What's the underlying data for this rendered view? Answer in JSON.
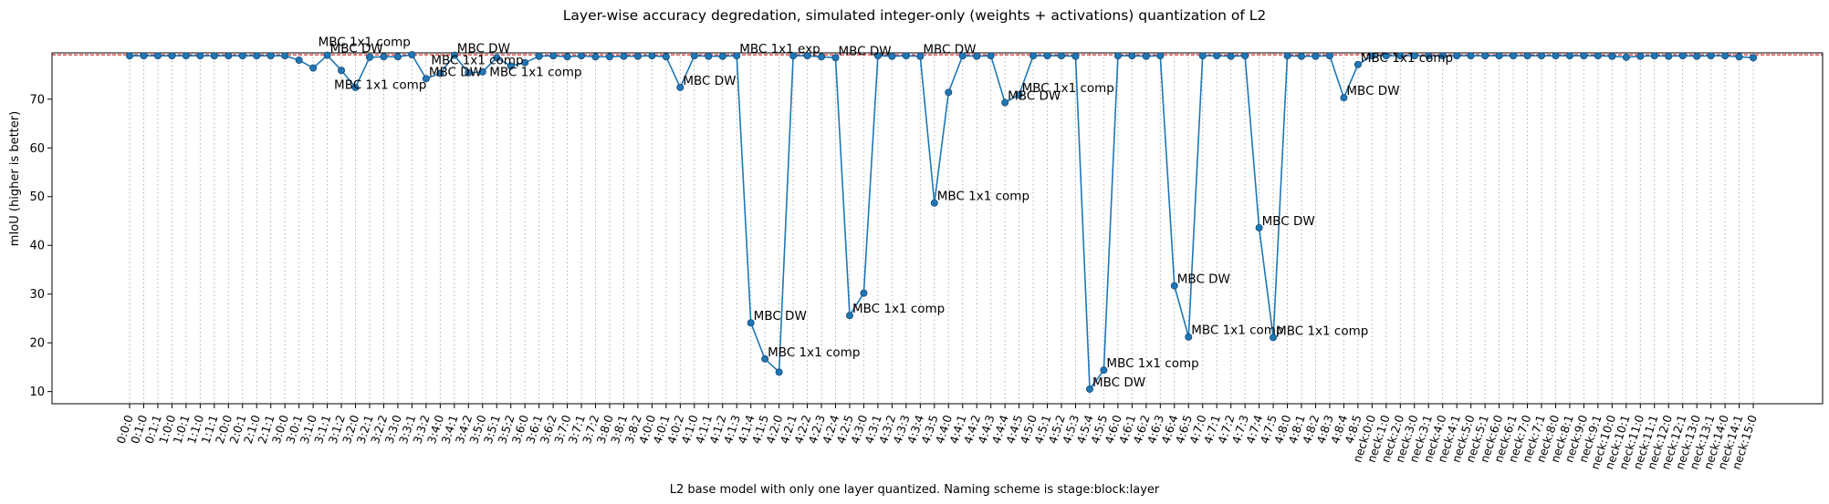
{
  "chart_data": {
    "type": "line",
    "title": "Layer-wise accuracy degredation, simulated integer-only (weights + activations) quantization of L2",
    "xlabel": "L2 base model with only one layer quantized. Naming scheme is stage:block:layer",
    "ylabel": "mIoU (higher is better)",
    "ylim": [
      7.5,
      79.5
    ],
    "yticks": [
      10,
      20,
      30,
      40,
      50,
      60,
      70
    ],
    "baseline": 79.1,
    "grid": "vertical-dotted",
    "line_color": "#1f77b4",
    "baseline_color": "#d62728",
    "categories": [
      "0:0:0",
      "0:1:0",
      "0:1:1",
      "1:0:0",
      "1:0:1",
      "1:1:0",
      "1:1:1",
      "2:0:0",
      "2:0:1",
      "2:1:0",
      "2:1:1",
      "3:0:0",
      "3:0:1",
      "3:1:0",
      "3:1:1",
      "3:1:2",
      "3:2:0",
      "3:2:1",
      "3:2:2",
      "3:3:0",
      "3:3:1",
      "3:3:2",
      "3:4:0",
      "3:4:1",
      "3:4:2",
      "3:5:0",
      "3:5:1",
      "3:5:2",
      "3:6:0",
      "3:6:1",
      "3:6:2",
      "3:7:0",
      "3:7:1",
      "3:7:2",
      "3:8:0",
      "3:8:1",
      "3:8:2",
      "4:0:0",
      "4:0:1",
      "4:0:2",
      "4:1:0",
      "4:1:1",
      "4:1:2",
      "4:1:3",
      "4:1:4",
      "4:1:5",
      "4:2:0",
      "4:2:1",
      "4:2:2",
      "4:2:3",
      "4:2:4",
      "4:2:5",
      "4:3:0",
      "4:3:1",
      "4:3:2",
      "4:3:3",
      "4:3:4",
      "4:3:5",
      "4:4:0",
      "4:4:1",
      "4:4:2",
      "4:4:3",
      "4:4:4",
      "4:4:5",
      "4:5:0",
      "4:5:1",
      "4:5:2",
      "4:5:3",
      "4:5:4",
      "4:5:5",
      "4:6:0",
      "4:6:1",
      "4:6:2",
      "4:6:3",
      "4:6:4",
      "4:6:5",
      "4:7:0",
      "4:7:1",
      "4:7:2",
      "4:7:3",
      "4:7:4",
      "4:7:5",
      "4:8:0",
      "4:8:1",
      "4:8:2",
      "4:8:3",
      "4:8:4",
      "4:8:5",
      "neck:0:0",
      "neck:1:0",
      "neck:2:0",
      "neck:3:0",
      "neck:3:1",
      "neck:4:0",
      "neck:4:1",
      "neck:5:0",
      "neck:5:1",
      "neck:6:0",
      "neck:6:1",
      "neck:7:0",
      "neck:7:1",
      "neck:8:0",
      "neck:8:1",
      "neck:9:0",
      "neck:9:1",
      "neck:10:0",
      "neck:10:1",
      "neck:11:0",
      "neck:11:1",
      "neck:12:0",
      "neck:12:1",
      "neck:13:0",
      "neck:13:1",
      "neck:14:0",
      "neck:14:1",
      "neck:15:0"
    ],
    "values": [
      78.9,
      78.9,
      78.9,
      78.9,
      78.9,
      78.9,
      78.9,
      78.9,
      78.9,
      78.9,
      78.9,
      78.9,
      78.0,
      76.4,
      79.0,
      75.9,
      72.4,
      78.6,
      78.7,
      78.7,
      79.1,
      74.2,
      75.3,
      79.0,
      75.4,
      75.6,
      78.5,
      76.8,
      77.5,
      78.8,
      78.9,
      78.7,
      78.9,
      78.7,
      78.7,
      78.8,
      78.8,
      78.9,
      78.7,
      72.4,
      78.9,
      78.8,
      78.8,
      78.9,
      24.1,
      16.7,
      14.0,
      78.9,
      78.9,
      78.7,
      78.5,
      25.6,
      30.2,
      78.9,
      78.8,
      78.9,
      78.8,
      48.7,
      71.4,
      78.9,
      78.8,
      78.9,
      69.3,
      70.9,
      78.9,
      78.9,
      78.9,
      78.8,
      10.5,
      14.4,
      78.9,
      78.9,
      78.8,
      78.9,
      31.7,
      21.2,
      78.9,
      78.9,
      78.8,
      78.9,
      43.6,
      21.1,
      78.9,
      78.8,
      78.8,
      78.9,
      70.3,
      77.1,
      78.9,
      78.9,
      78.9,
      78.9,
      78.9,
      78.9,
      78.9,
      78.9,
      78.9,
      78.9,
      78.9,
      78.9,
      78.9,
      78.9,
      78.9,
      78.9,
      78.9,
      78.8,
      78.6,
      78.8,
      78.9,
      78.8,
      78.9,
      78.8,
      78.9,
      78.9,
      78.7,
      78.5
    ],
    "annotations": [
      {
        "category": "3:1:1",
        "text": "MBC 1x1 comp",
        "anchor": "above"
      },
      {
        "category": "3:1:1",
        "text": "MBC DW",
        "anchor": "right"
      },
      {
        "category": "3:1:2",
        "text": "MBC 1x1 comp",
        "anchor": "below"
      },
      {
        "category": "3:3:2",
        "text": "MBC DW",
        "anchor": "right"
      },
      {
        "category": "3:4:0",
        "text": "MBC 1x1 comp",
        "anchor": "above"
      },
      {
        "category": "3:4:1",
        "text": "MBC DW",
        "anchor": "right"
      },
      {
        "category": "3:5:1",
        "text": "MBC 1x1 comp",
        "anchor": "below"
      },
      {
        "category": "4:0:2",
        "text": "MBC DW",
        "anchor": "right"
      },
      {
        "category": "4:1:3",
        "text": "MBC 1x1 exp",
        "anchor": "right"
      },
      {
        "category": "4:1:4",
        "text": "MBC DW",
        "anchor": "right"
      },
      {
        "category": "4:1:5",
        "text": "MBC 1x1 comp",
        "anchor": "right"
      },
      {
        "category": "4:2:4",
        "text": "MBC DW",
        "anchor": "right"
      },
      {
        "category": "4:2:5",
        "text": "MBC 1x1 comp",
        "anchor": "right"
      },
      {
        "category": "4:3:4",
        "text": "MBC DW",
        "anchor": "right"
      },
      {
        "category": "4:3:5",
        "text": "MBC 1x1 comp",
        "anchor": "right"
      },
      {
        "category": "4:4:4",
        "text": "MBC DW",
        "anchor": "right"
      },
      {
        "category": "4:4:5",
        "text": "MBC 1x1 comp",
        "anchor": "right"
      },
      {
        "category": "4:5:4",
        "text": "MBC DW",
        "anchor": "right"
      },
      {
        "category": "4:5:5",
        "text": "MBC 1x1 comp",
        "anchor": "right"
      },
      {
        "category": "4:6:4",
        "text": "MBC DW",
        "anchor": "right"
      },
      {
        "category": "4:6:5",
        "text": "MBC 1x1 comp",
        "anchor": "right"
      },
      {
        "category": "4:7:4",
        "text": "MBC DW",
        "anchor": "right"
      },
      {
        "category": "4:7:5",
        "text": "MBC 1x1 comp",
        "anchor": "right"
      },
      {
        "category": "4:8:4",
        "text": "MBC DW",
        "anchor": "right"
      },
      {
        "category": "4:8:5",
        "text": "MBC 1x1 comp",
        "anchor": "right"
      }
    ]
  }
}
